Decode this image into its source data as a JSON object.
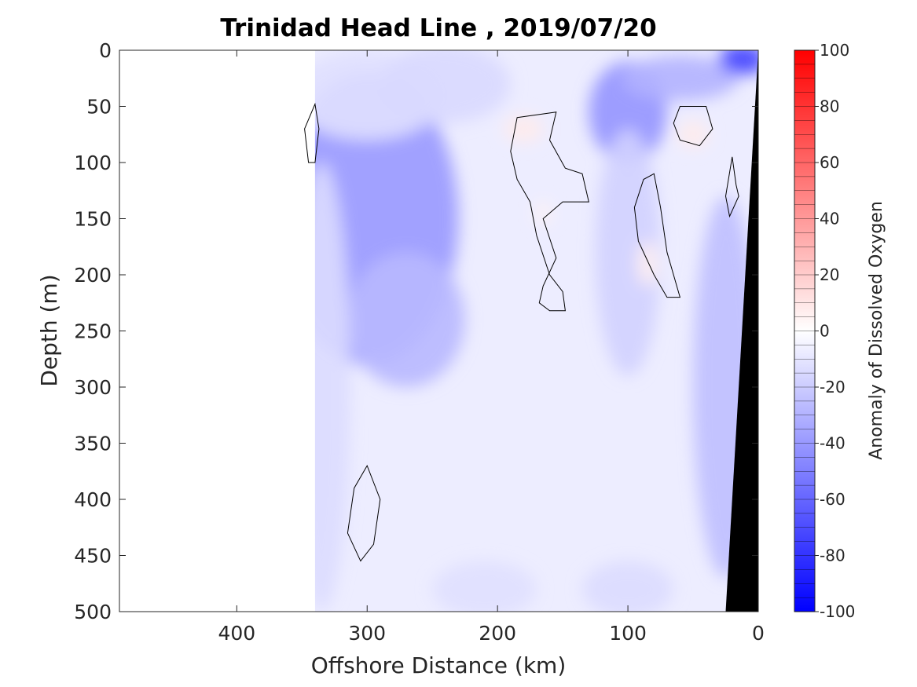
{
  "chart_data": {
    "type": "heatmap",
    "title": "Trinidad Head Line , 2019/07/20",
    "xlabel": "Offshore Distance (km)",
    "ylabel": "Depth (m)",
    "colorbar_label": "Anomaly of Dissolved Oxygen",
    "xlim": [
      490,
      0
    ],
    "x_reversed": true,
    "ylim": [
      0,
      500
    ],
    "y_reversed": true,
    "clim": [
      -100,
      100
    ],
    "colormap": "blue-white-red",
    "colors": {
      "negative": "#0000ff",
      "zero": "#ffffff",
      "positive": "#ff0000",
      "land": "#000000"
    },
    "x_ticks": [
      "400",
      "300",
      "200",
      "100",
      "0"
    ],
    "x_tick_values": [
      400,
      300,
      200,
      100,
      0
    ],
    "y_ticks": [
      "0",
      "50",
      "100",
      "150",
      "200",
      "250",
      "300",
      "350",
      "400",
      "450",
      "500"
    ],
    "y_tick_values": [
      0,
      50,
      100,
      150,
      200,
      250,
      300,
      350,
      400,
      450,
      500
    ],
    "cb_ticks": [
      "100",
      "80",
      "60",
      "40",
      "20",
      "0",
      "-20",
      "-40",
      "-60",
      "-80",
      "-100"
    ],
    "cb_tick_values": [
      100,
      80,
      60,
      40,
      20,
      0,
      -20,
      -40,
      -60,
      -80,
      -100
    ],
    "data_extent_km": [
      340,
      0
    ],
    "blobs": [
      {
        "x": 300,
        "y": 150,
        "rx": 70,
        "ry": 130,
        "value": -40
      },
      {
        "x": 270,
        "y": 240,
        "rx": 45,
        "ry": 60,
        "value": -28
      },
      {
        "x": 300,
        "y": 40,
        "rx": 60,
        "ry": 40,
        "value": -12
      },
      {
        "x": 240,
        "y": 30,
        "rx": 50,
        "ry": 35,
        "value": -15
      },
      {
        "x": 100,
        "y": 55,
        "rx": 30,
        "ry": 45,
        "value": -42
      },
      {
        "x": 60,
        "y": 25,
        "rx": 45,
        "ry": 20,
        "value": -30
      },
      {
        "x": 12,
        "y": 8,
        "rx": 18,
        "ry": 14,
        "value": -75
      },
      {
        "x": 100,
        "y": 180,
        "rx": 25,
        "ry": 110,
        "value": -18
      },
      {
        "x": 25,
        "y": 300,
        "rx": 25,
        "ry": 170,
        "value": -25
      },
      {
        "x": 335,
        "y": 300,
        "rx": 22,
        "ry": 200,
        "value": -14
      },
      {
        "x": 210,
        "y": 480,
        "rx": 40,
        "ry": 25,
        "value": -12
      },
      {
        "x": 100,
        "y": 480,
        "rx": 35,
        "ry": 25,
        "value": -14
      },
      {
        "x": 180,
        "y": 70,
        "rx": 15,
        "ry": 12,
        "value": 8
      },
      {
        "x": 50,
        "y": 75,
        "rx": 12,
        "ry": 12,
        "value": 8
      },
      {
        "x": 85,
        "y": 190,
        "rx": 8,
        "ry": 20,
        "value": 6
      },
      {
        "x": 165,
        "y": 145,
        "rx": 6,
        "ry": 10,
        "value": 5
      }
    ],
    "zero_contours": [
      [
        [
          185,
          60
        ],
        [
          155,
          55
        ],
        [
          160,
          80
        ],
        [
          148,
          105
        ],
        [
          135,
          110
        ],
        [
          130,
          135
        ],
        [
          150,
          135
        ],
        [
          165,
          150
        ],
        [
          155,
          185
        ],
        [
          165,
          210
        ],
        [
          168,
          225
        ],
        [
          160,
          232
        ],
        [
          148,
          232
        ],
        [
          150,
          215
        ],
        [
          160,
          200
        ],
        [
          170,
          165
        ],
        [
          175,
          135
        ],
        [
          185,
          115
        ],
        [
          190,
          90
        ],
        [
          185,
          60
        ]
      ],
      [
        [
          80,
          110
        ],
        [
          75,
          140
        ],
        [
          70,
          180
        ],
        [
          60,
          220
        ],
        [
          70,
          220
        ],
        [
          80,
          200
        ],
        [
          92,
          170
        ],
        [
          95,
          140
        ],
        [
          88,
          115
        ],
        [
          80,
          110
        ]
      ],
      [
        [
          60,
          50
        ],
        [
          40,
          50
        ],
        [
          35,
          70
        ],
        [
          45,
          85
        ],
        [
          60,
          80
        ],
        [
          65,
          65
        ],
        [
          60,
          50
        ]
      ],
      [
        [
          300,
          370
        ],
        [
          310,
          390
        ],
        [
          315,
          430
        ],
        [
          305,
          455
        ],
        [
          295,
          440
        ],
        [
          290,
          400
        ],
        [
          300,
          370
        ]
      ],
      [
        [
          340,
          48
        ],
        [
          337,
          70
        ],
        [
          340,
          100
        ],
        [
          345,
          100
        ],
        [
          348,
          70
        ],
        [
          340,
          48
        ]
      ],
      [
        [
          20,
          95
        ],
        [
          17,
          120
        ],
        [
          15,
          130
        ],
        [
          22,
          148
        ],
        [
          25,
          130
        ],
        [
          20,
          95
        ]
      ]
    ],
    "bathymetry": [
      [
        25,
        500
      ],
      [
        0,
        0
      ],
      [
        0,
        500
      ]
    ]
  }
}
